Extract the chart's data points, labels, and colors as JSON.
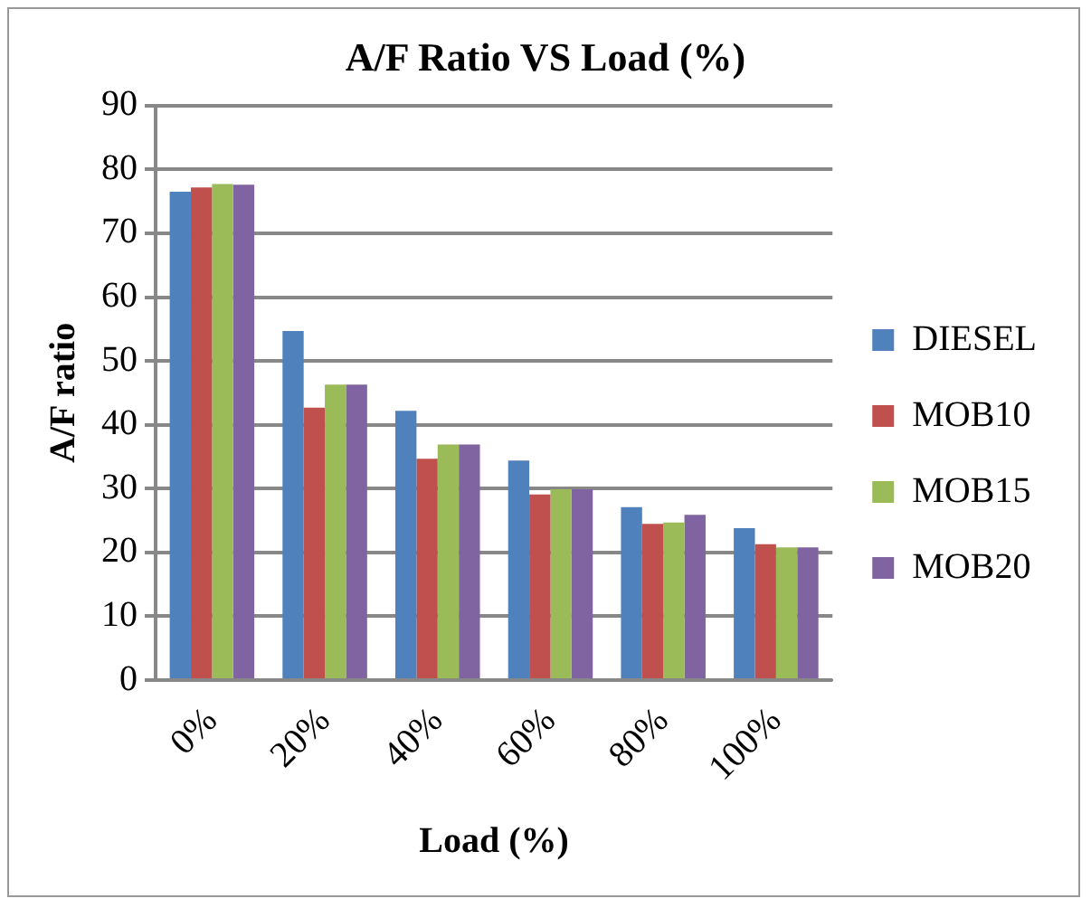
{
  "chart_data": {
    "type": "bar",
    "title": "A/F Ratio VS Load (%)",
    "xlabel": "Load (%)",
    "ylabel": "A/F ratio",
    "categories": [
      "0%",
      "20%",
      "40%",
      "60%",
      "80%",
      "100%"
    ],
    "series": [
      {
        "name": "DIESEL",
        "color": "#4f81bd",
        "values": [
          76.5,
          54.7,
          42.2,
          34.4,
          27.1,
          23.8
        ]
      },
      {
        "name": "MOB10",
        "color": "#c0504d",
        "values": [
          77.2,
          42.7,
          34.7,
          29.1,
          24.5,
          21.3
        ]
      },
      {
        "name": "MOB15",
        "color": "#9bbb59",
        "values": [
          77.7,
          46.3,
          36.9,
          29.9,
          24.7,
          20.8
        ]
      },
      {
        "name": "MOB20",
        "color": "#8064a2",
        "values": [
          77.6,
          46.3,
          36.9,
          29.9,
          25.9,
          20.8
        ]
      }
    ],
    "ylim": [
      0,
      90
    ],
    "yticks": [
      0,
      10,
      20,
      30,
      40,
      50,
      60,
      70,
      80,
      90
    ],
    "grid": "y",
    "legend": "right"
  }
}
